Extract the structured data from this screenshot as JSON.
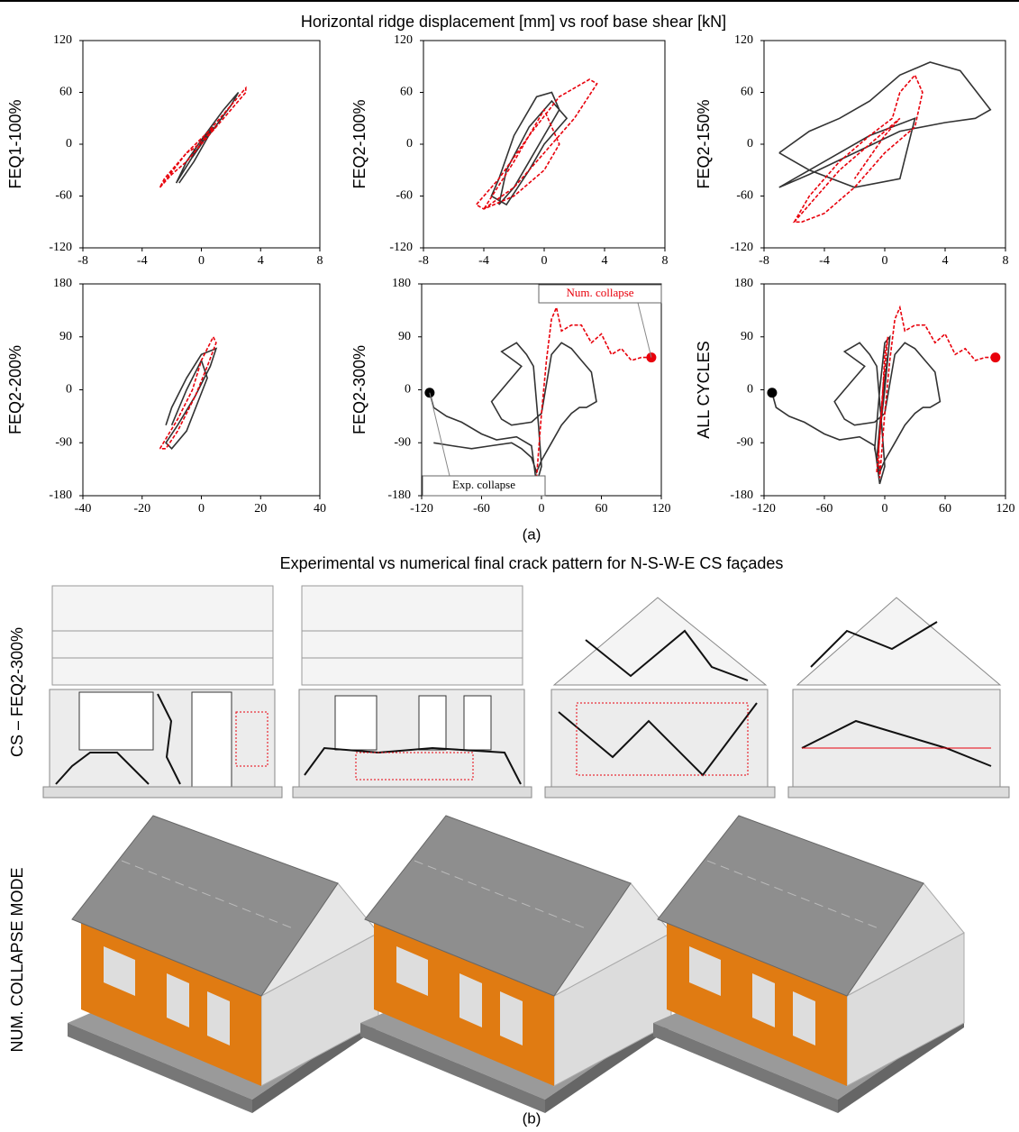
{
  "figure": {
    "title_a": "Horizontal ridge displacement [mm] vs roof base shear [kN]",
    "caption_a": "(a)",
    "title_b": "Experimental vs numerical final crack pattern for N-S-W-E CS façades",
    "row_label_crack": "CS – FEQ2-300%",
    "row_label_collapse": "NUM. COLLAPSE MODE",
    "caption_b": "(b)"
  },
  "chart_data": [
    {
      "type": "line",
      "row_label": "FEQ1-100%",
      "xlim": [
        -8,
        8
      ],
      "ylim": [
        -120,
        120
      ],
      "xticks": [
        -8,
        -4,
        0,
        4,
        8
      ],
      "yticks": [
        -120,
        -60,
        0,
        60,
        120
      ],
      "series": [
        {
          "color": "#333333",
          "dash": false,
          "x": [
            -1.5,
            -0.5,
            0.5,
            2,
            2.5,
            1.5,
            0,
            -1,
            -1.7,
            -0.8,
            0.3,
            0.8,
            0.2,
            -0.6,
            -0.4
          ],
          "values": [
            -45,
            -20,
            10,
            45,
            60,
            40,
            5,
            -20,
            -45,
            -20,
            10,
            20,
            5,
            -15,
            -5
          ]
        },
        {
          "color": "#e8000b",
          "dash": true,
          "x": [
            -2.8,
            -2,
            -1,
            0,
            1,
            2,
            3,
            3,
            2,
            0.5,
            -1,
            -2.5,
            -2.8,
            -1,
            0.5,
            1,
            -0.5,
            -1
          ],
          "values": [
            -50,
            -35,
            -20,
            0,
            20,
            40,
            60,
            65,
            45,
            15,
            -10,
            -40,
            -50,
            -10,
            15,
            20,
            -5,
            -10
          ]
        }
      ]
    },
    {
      "type": "line",
      "row_label": "FEQ2-100%",
      "xlim": [
        -8,
        8
      ],
      "ylim": [
        -120,
        120
      ],
      "xticks": [
        -8,
        -4,
        0,
        4,
        8
      ],
      "yticks": [
        -120,
        -60,
        0,
        60,
        120
      ],
      "series": [
        {
          "color": "#333333",
          "dash": false,
          "x": [
            -3,
            -2,
            -1,
            0,
            1,
            0.5,
            -0.5,
            -2,
            -3,
            -3.5,
            -2.5,
            -1,
            0,
            1.5,
            0.5,
            -1,
            -2.5,
            -3
          ],
          "values": [
            -70,
            -50,
            -20,
            10,
            40,
            60,
            55,
            10,
            -40,
            -60,
            -70,
            -30,
            0,
            30,
            50,
            20,
            -30,
            -70
          ]
        },
        {
          "color": "#e8000b",
          "dash": true,
          "x": [
            -4,
            -2,
            0,
            2,
            3.5,
            3,
            1,
            -1,
            -3,
            -4.5,
            -4,
            -2,
            0,
            1,
            0,
            -2,
            -4
          ],
          "values": [
            -75,
            -50,
            -10,
            30,
            70,
            75,
            55,
            10,
            -40,
            -70,
            -75,
            -60,
            -30,
            0,
            40,
            -20,
            -75
          ]
        }
      ]
    },
    {
      "type": "line",
      "row_label": "FEQ2-150%",
      "xlim": [
        -8,
        8
      ],
      "ylim": [
        -120,
        120
      ],
      "xticks": [
        -8,
        -4,
        0,
        4,
        8
      ],
      "yticks": [
        -120,
        -60,
        0,
        60,
        120
      ],
      "series": [
        {
          "color": "#333333",
          "dash": false,
          "x": [
            -7,
            -5,
            -3,
            -1,
            1,
            3,
            5,
            7,
            6,
            4,
            1,
            -2,
            -5,
            -7,
            -6,
            -4,
            -1,
            2,
            1,
            -2,
            -5,
            -7
          ],
          "values": [
            -10,
            15,
            30,
            50,
            80,
            95,
            85,
            40,
            30,
            25,
            15,
            -10,
            -35,
            -50,
            -40,
            -20,
            10,
            30,
            -40,
            -50,
            -30,
            -10
          ]
        },
        {
          "color": "#e8000b",
          "dash": true,
          "x": [
            -6,
            -5,
            -3,
            -1,
            0.5,
            1,
            2,
            2.5,
            2,
            0,
            -2,
            -4,
            -5.5,
            -6,
            -3,
            -1,
            1,
            0,
            -2
          ],
          "values": [
            -90,
            -60,
            -20,
            10,
            30,
            60,
            80,
            60,
            20,
            -10,
            -50,
            -80,
            -90,
            -90,
            -30,
            0,
            30,
            10,
            -40
          ]
        }
      ]
    },
    {
      "type": "line",
      "row_label": "FEQ2-200%",
      "xlim": [
        -40,
        40
      ],
      "ylim": [
        -180,
        180
      ],
      "xticks": [
        -40,
        -20,
        0,
        20,
        40
      ],
      "yticks": [
        -180,
        -90,
        0,
        90,
        180
      ],
      "series": [
        {
          "color": "#333333",
          "dash": false,
          "x": [
            -12,
            -10,
            -5,
            0,
            5,
            3,
            -2,
            -8,
            -12,
            -10,
            -5,
            2,
            0,
            -5,
            -10
          ],
          "values": [
            -60,
            -30,
            20,
            60,
            70,
            40,
            -10,
            -60,
            -90,
            -100,
            -70,
            20,
            50,
            0,
            -60
          ]
        },
        {
          "color": "#e8000b",
          "dash": true,
          "x": [
            -14,
            -8,
            -3,
            0,
            4,
            5,
            2,
            -2,
            -8,
            -12,
            -14
          ],
          "values": [
            -100,
            -50,
            0,
            50,
            90,
            80,
            40,
            -10,
            -70,
            -100,
            -100
          ]
        }
      ]
    },
    {
      "type": "line",
      "row_label": "FEQ2-300%",
      "xlim": [
        -120,
        120
      ],
      "ylim": [
        -180,
        180
      ],
      "xticks": [
        -120,
        -60,
        0,
        60,
        120
      ],
      "yticks": [
        -180,
        -90,
        0,
        90,
        180
      ],
      "series": [
        {
          "color": "#333333",
          "dash": false,
          "x": [
            -112,
            -108,
            -95,
            -80,
            -60,
            -45,
            -25,
            -10,
            -5,
            0,
            -3,
            -8,
            -15,
            -25,
            -40,
            -28,
            -20,
            -30,
            -40,
            -50,
            -40,
            -30,
            -10,
            0,
            10,
            20,
            30,
            40,
            50,
            55,
            45,
            38,
            30,
            20,
            10,
            0,
            -5,
            -10,
            -20,
            -30,
            -50,
            -70,
            -90,
            -108
          ],
          "values": [
            -5,
            -30,
            -45,
            -55,
            -75,
            -85,
            -80,
            -95,
            -160,
            -130,
            -60,
            40,
            60,
            80,
            65,
            50,
            40,
            20,
            0,
            -20,
            -50,
            -60,
            -55,
            -40,
            60,
            80,
            70,
            50,
            30,
            -20,
            -30,
            -30,
            -40,
            -60,
            -90,
            -120,
            -140,
            -115,
            -100,
            -90,
            -95,
            -100,
            -95,
            -90
          ]
        },
        {
          "color": "#e8000b",
          "dash": true,
          "x": [
            -5,
            0,
            5,
            10,
            15,
            20,
            30,
            40,
            50,
            60,
            70,
            80,
            90,
            100,
            110
          ],
          "values": [
            -150,
            -40,
            50,
            120,
            140,
            100,
            110,
            110,
            80,
            95,
            60,
            70,
            50,
            55,
            55
          ]
        }
      ],
      "points": [
        {
          "x": -112,
          "y": -5,
          "color": "#000000"
        },
        {
          "x": 110,
          "y": 55,
          "color": "#e8000b"
        }
      ],
      "annotations": [
        "Num. collapse",
        "Exp. collapse"
      ]
    },
    {
      "type": "line",
      "row_label": "ALL CYCLES",
      "xlim": [
        -120,
        120
      ],
      "ylim": [
        -180,
        180
      ],
      "xticks": [
        -120,
        -60,
        0,
        60,
        120
      ],
      "yticks": [
        -180,
        -90,
        0,
        90,
        180
      ],
      "series": [
        {
          "color": "#333333",
          "dash": false,
          "x": [
            -112,
            -108,
            -95,
            -80,
            -60,
            -45,
            -25,
            -10,
            -5,
            0,
            -3,
            -8,
            -15,
            -25,
            -40,
            -28,
            -20,
            -30,
            -40,
            -50,
            -40,
            -30,
            -10,
            0,
            10,
            20,
            30,
            40,
            50,
            55,
            45,
            38,
            30,
            20,
            10,
            0,
            -5,
            -10,
            -5,
            0,
            5,
            0,
            -8,
            -5,
            3
          ],
          "values": [
            -5,
            -30,
            -45,
            -55,
            -75,
            -85,
            -80,
            -95,
            -160,
            -130,
            -60,
            40,
            60,
            80,
            65,
            50,
            40,
            20,
            0,
            -20,
            -50,
            -60,
            -55,
            -40,
            60,
            80,
            70,
            50,
            30,
            -20,
            -30,
            -30,
            -40,
            -60,
            -90,
            -120,
            -140,
            -100,
            0,
            80,
            90,
            0,
            -120,
            -60,
            60
          ]
        },
        {
          "color": "#e8000b",
          "dash": true,
          "x": [
            -8,
            -3,
            0,
            3,
            -2,
            -6,
            -5,
            0,
            5,
            10,
            15,
            20,
            30,
            40,
            50,
            60,
            70,
            80,
            90,
            100,
            110
          ],
          "values": [
            -140,
            -40,
            60,
            90,
            0,
            -100,
            -150,
            -40,
            50,
            120,
            140,
            100,
            110,
            110,
            80,
            95,
            60,
            70,
            50,
            55,
            55
          ]
        }
      ],
      "points": [
        {
          "x": -112,
          "y": -5,
          "color": "#000000"
        },
        {
          "x": 110,
          "y": 55,
          "color": "#e8000b"
        }
      ]
    }
  ]
}
